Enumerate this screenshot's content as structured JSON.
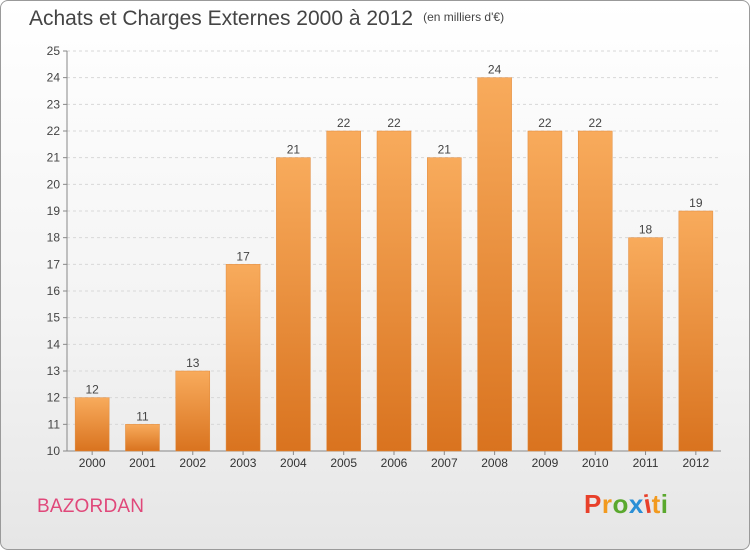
{
  "header": {
    "title": "Achats et Charges Externes 2000 à 2012",
    "unit": "(en milliers d'€)"
  },
  "footer": {
    "commune": "BAZORDAN",
    "logo_text": "Proxiti",
    "logo_colors": [
      "#e8402a",
      "#f29a1f",
      "#5aa82e",
      "#2a8fd6",
      "#e8402a",
      "#f29a1f",
      "#5aa82e"
    ]
  },
  "colors": {
    "bar_light": "#f8ab5c",
    "bar_dark": "#d9731f",
    "commune": "#e0487a"
  },
  "chart_data": {
    "type": "bar",
    "title": "Achats et Charges Externes 2000 à 2012",
    "subtitle": "(en milliers d'€)",
    "xlabel": "",
    "ylabel": "",
    "categories": [
      "2000",
      "2001",
      "2002",
      "2003",
      "2004",
      "2005",
      "2006",
      "2007",
      "2008",
      "2009",
      "2010",
      "2011",
      "2012"
    ],
    "values": [
      12,
      11,
      13,
      17,
      21,
      22,
      22,
      21,
      24,
      22,
      22,
      18,
      19
    ],
    "data_labels": [
      "12",
      "11",
      "13",
      "17",
      "21",
      "22",
      "22",
      "21",
      "24",
      "22",
      "22",
      "18",
      "19"
    ],
    "ylim": [
      10,
      25
    ],
    "yticks": [
      10,
      11,
      12,
      13,
      14,
      15,
      16,
      17,
      18,
      19,
      20,
      21,
      22,
      23,
      24,
      25
    ],
    "grid": true,
    "legend": "none"
  }
}
